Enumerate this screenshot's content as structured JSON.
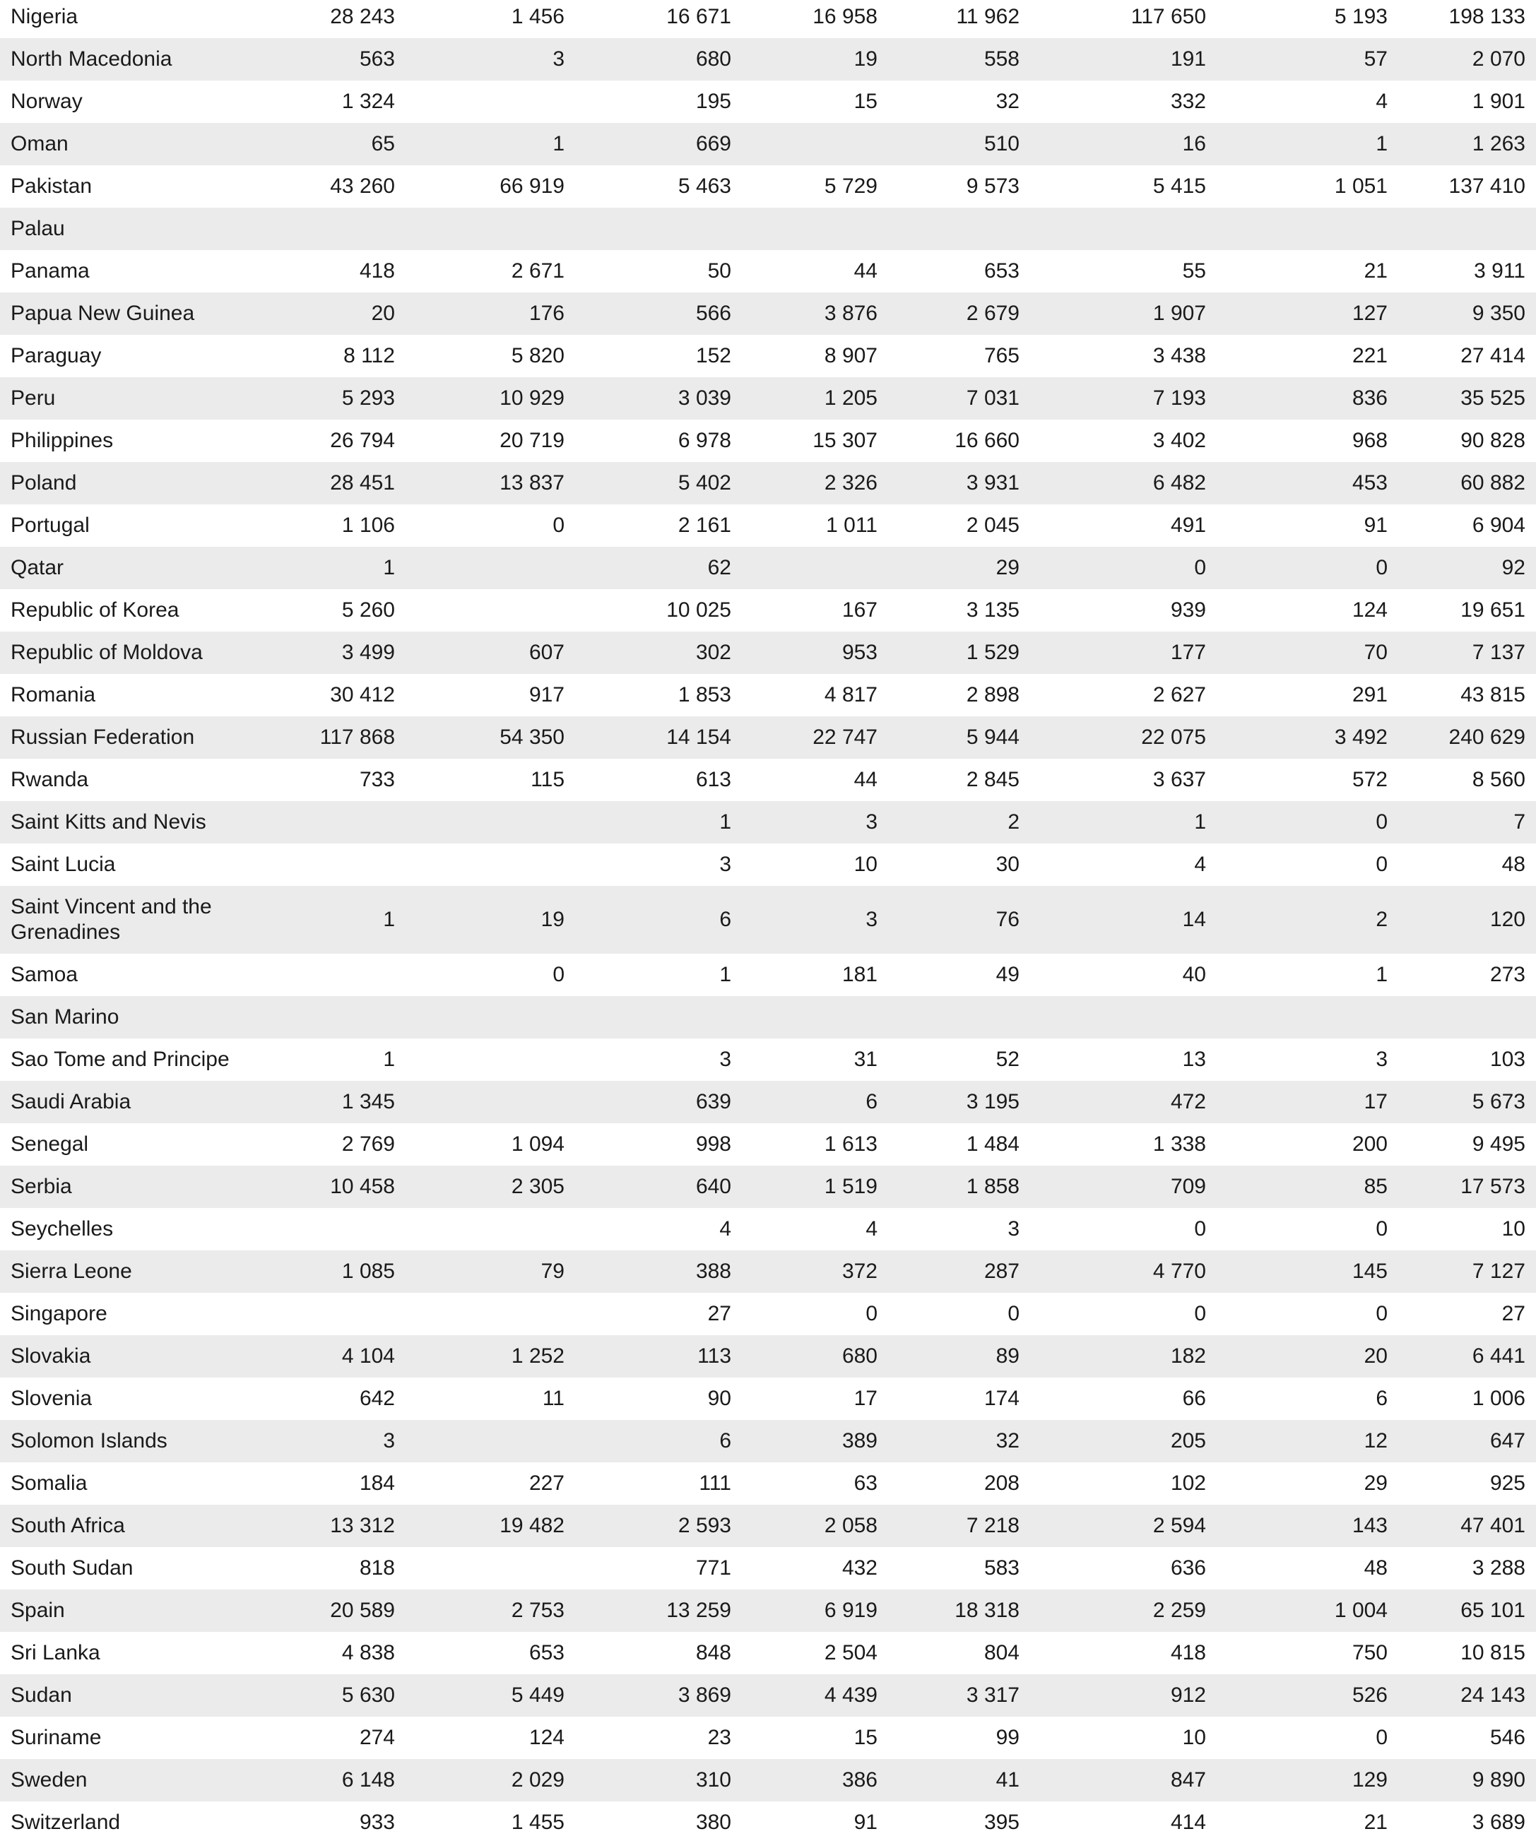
{
  "table": {
    "rows": [
      [
        "Nigeria",
        "28 243",
        "1 456",
        "16 671",
        "16 958",
        "11 962",
        "117 650",
        "5 193",
        "198 133"
      ],
      [
        "North Macedonia",
        "563",
        "3",
        "680",
        "19",
        "558",
        "191",
        "57",
        "2 070"
      ],
      [
        "Norway",
        "1 324",
        null,
        "195",
        "15",
        "32",
        "332",
        "4",
        "1 901"
      ],
      [
        "Oman",
        "65",
        "1",
        "669",
        null,
        "510",
        "16",
        "1",
        "1 263"
      ],
      [
        "Pakistan",
        "43 260",
        "66 919",
        "5 463",
        "5 729",
        "9 573",
        "5 415",
        "1 051",
        "137 410"
      ],
      [
        "Palau",
        null,
        null,
        null,
        null,
        null,
        null,
        null,
        null
      ],
      [
        "Panama",
        "418",
        "2 671",
        "50",
        "44",
        "653",
        "55",
        "21",
        "3 911"
      ],
      [
        "Papua New Guinea",
        "20",
        "176",
        "566",
        "3 876",
        "2 679",
        "1 907",
        "127",
        "9 350"
      ],
      [
        "Paraguay",
        "8 112",
        "5 820",
        "152",
        "8 907",
        "765",
        "3 438",
        "221",
        "27 414"
      ],
      [
        "Peru",
        "5 293",
        "10 929",
        "3 039",
        "1 205",
        "7 031",
        "7 193",
        "836",
        "35 525"
      ],
      [
        "Philippines",
        "26 794",
        "20 719",
        "6 978",
        "15 307",
        "16 660",
        "3 402",
        "968",
        "90 828"
      ],
      [
        "Poland",
        "28 451",
        "13 837",
        "5 402",
        "2 326",
        "3 931",
        "6 482",
        "453",
        "60 882"
      ],
      [
        "Portugal",
        "1 106",
        "0",
        "2 161",
        "1 011",
        "2 045",
        "491",
        "91",
        "6 904"
      ],
      [
        "Qatar",
        "1",
        null,
        "62",
        null,
        "29",
        "0",
        "0",
        "92"
      ],
      [
        "Republic of Korea",
        "5 260",
        null,
        "10 025",
        "167",
        "3 135",
        "939",
        "124",
        "19 651"
      ],
      [
        "Republic of Moldova",
        "3 499",
        "607",
        "302",
        "953",
        "1 529",
        "177",
        "70",
        "7 137"
      ],
      [
        "Romania",
        "30 412",
        "917",
        "1 853",
        "4 817",
        "2 898",
        "2 627",
        "291",
        "43 815"
      ],
      [
        "Russian Federation",
        "117 868",
        "54 350",
        "14 154",
        "22 747",
        "5 944",
        "22 075",
        "3 492",
        "240 629"
      ],
      [
        "Rwanda",
        "733",
        "115",
        "613",
        "44",
        "2 845",
        "3 637",
        "572",
        "8 560"
      ],
      [
        "Saint Kitts and Nevis",
        null,
        null,
        "1",
        "3",
        "2",
        "1",
        "0",
        "7"
      ],
      [
        "Saint Lucia",
        null,
        null,
        "3",
        "10",
        "30",
        "4",
        "0",
        "48"
      ],
      [
        "Saint Vincent and the Grenadines",
        "1",
        "19",
        "6",
        "3",
        "76",
        "14",
        "2",
        "120"
      ],
      [
        "Samoa",
        null,
        "0",
        "1",
        "181",
        "49",
        "40",
        "1",
        "273"
      ],
      [
        "San Marino",
        null,
        null,
        null,
        null,
        null,
        null,
        null,
        null
      ],
      [
        "Sao Tome and Principe",
        "1",
        null,
        "3",
        "31",
        "52",
        "13",
        "3",
        "103"
      ],
      [
        "Saudi Arabia",
        "1 345",
        null,
        "639",
        "6",
        "3 195",
        "472",
        "17",
        "5 673"
      ],
      [
        "Senegal",
        "2 769",
        "1 094",
        "998",
        "1 613",
        "1 484",
        "1 338",
        "200",
        "9 495"
      ],
      [
        "Serbia",
        "10 458",
        "2 305",
        "640",
        "1 519",
        "1 858",
        "709",
        "85",
        "17 573"
      ],
      [
        "Seychelles",
        null,
        null,
        "4",
        "4",
        "3",
        "0",
        "0",
        "10"
      ],
      [
        "Sierra Leone",
        "1 085",
        "79",
        "388",
        "372",
        "287",
        "4 770",
        "145",
        "7 127"
      ],
      [
        "Singapore",
        null,
        null,
        "27",
        "0",
        "0",
        "0",
        "0",
        "27"
      ],
      [
        "Slovakia",
        "4 104",
        "1 252",
        "113",
        "680",
        "89",
        "182",
        "20",
        "6 441"
      ],
      [
        "Slovenia",
        "642",
        "11",
        "90",
        "17",
        "174",
        "66",
        "6",
        "1 006"
      ],
      [
        "Solomon Islands",
        "3",
        null,
        "6",
        "389",
        "32",
        "205",
        "12",
        "647"
      ],
      [
        "Somalia",
        "184",
        "227",
        "111",
        "63",
        "208",
        "102",
        "29",
        "925"
      ],
      [
        "South Africa",
        "13 312",
        "19 482",
        "2 593",
        "2 058",
        "7 218",
        "2 594",
        "143",
        "47 401"
      ],
      [
        "South Sudan",
        "818",
        null,
        "771",
        "432",
        "583",
        "636",
        "48",
        "3 288"
      ],
      [
        "Spain",
        "20 589",
        "2 753",
        "13 259",
        "6 919",
        "18 318",
        "2 259",
        "1 004",
        "65 101"
      ],
      [
        "Sri Lanka",
        "4 838",
        "653",
        "848",
        "2 504",
        "804",
        "418",
        "750",
        "10 815"
      ],
      [
        "Sudan",
        "5 630",
        "5 449",
        "3 869",
        "4 439",
        "3 317",
        "912",
        "526",
        "24 143"
      ],
      [
        "Suriname",
        "274",
        "124",
        "23",
        "15",
        "99",
        "10",
        "0",
        "546"
      ],
      [
        "Sweden",
        "6 148",
        "2 029",
        "310",
        "386",
        "41",
        "847",
        "129",
        "9 890"
      ],
      [
        "Switzerland",
        "933",
        "1 455",
        "380",
        "91",
        "395",
        "414",
        "21",
        "3 689"
      ]
    ]
  }
}
